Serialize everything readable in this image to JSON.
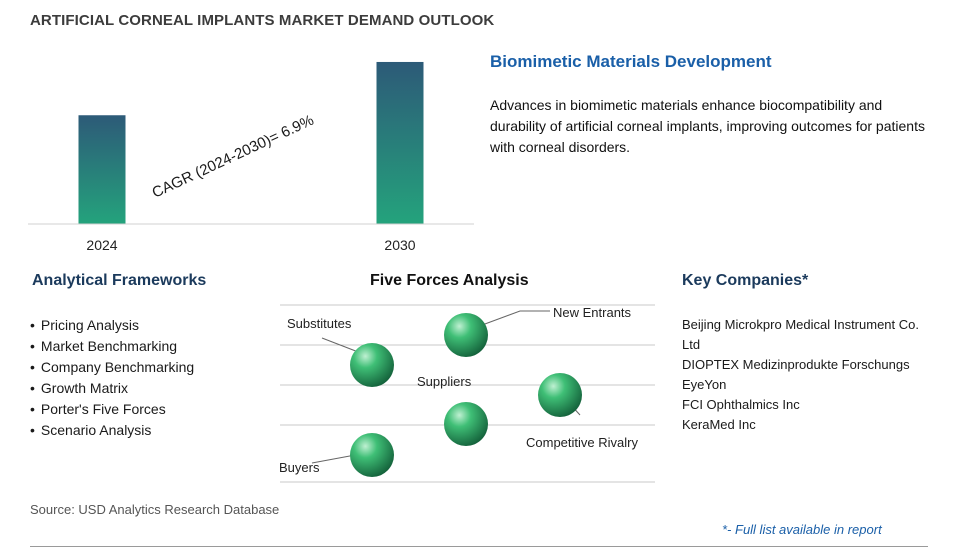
{
  "page_title": "ARTIFICIAL CORNEAL IMPLANTS MARKET DEMAND OUTLOOK",
  "chart_data": {
    "type": "bar",
    "categories": [
      "2024",
      "2030"
    ],
    "values": [
      1.0,
      1.49
    ],
    "annotation": "CAGR (2024-2030)=   6.9%",
    "title": "",
    "xlabel": "",
    "ylabel": "",
    "ylim": [
      0,
      1.6
    ],
    "grid": false,
    "colors": {
      "bar_top": "#2d5a78",
      "bar_bottom": "#24a37c"
    }
  },
  "feature": {
    "title": "Biomimetic Materials Development",
    "description": "Advances in biomimetic materials enhance biocompatibility and durability of artificial corneal implants, improving outcomes for patients with corneal disorders."
  },
  "frameworks": {
    "title": "Analytical Frameworks",
    "items": [
      "Pricing Analysis",
      "Market Benchmarking",
      "Company Benchmarking",
      "Growth Matrix",
      "Porter's Five Forces",
      "Scenario Analysis"
    ]
  },
  "five_forces": {
    "title": "Five Forces Analysis",
    "labels": {
      "substitutes": "Substitutes",
      "new_entrants": "New Entrants",
      "suppliers": "Suppliers",
      "competitive_rivalry": "Competitive Rivalry",
      "buyers": "Buyers"
    },
    "sphere_icon": "green-sphere-icon"
  },
  "companies": {
    "title": "Key Companies*",
    "items": [
      "Beijing Microkpro Medical Instrument Co. Ltd",
      "DIOPTEX Medizinprodukte Forschungs",
      "EyeYon",
      "FCI Ophthalmics Inc",
      "KeraMed Inc"
    ]
  },
  "footer": {
    "source": "Source: USD Analytics Research Database",
    "note": "*- Full list available in report"
  }
}
